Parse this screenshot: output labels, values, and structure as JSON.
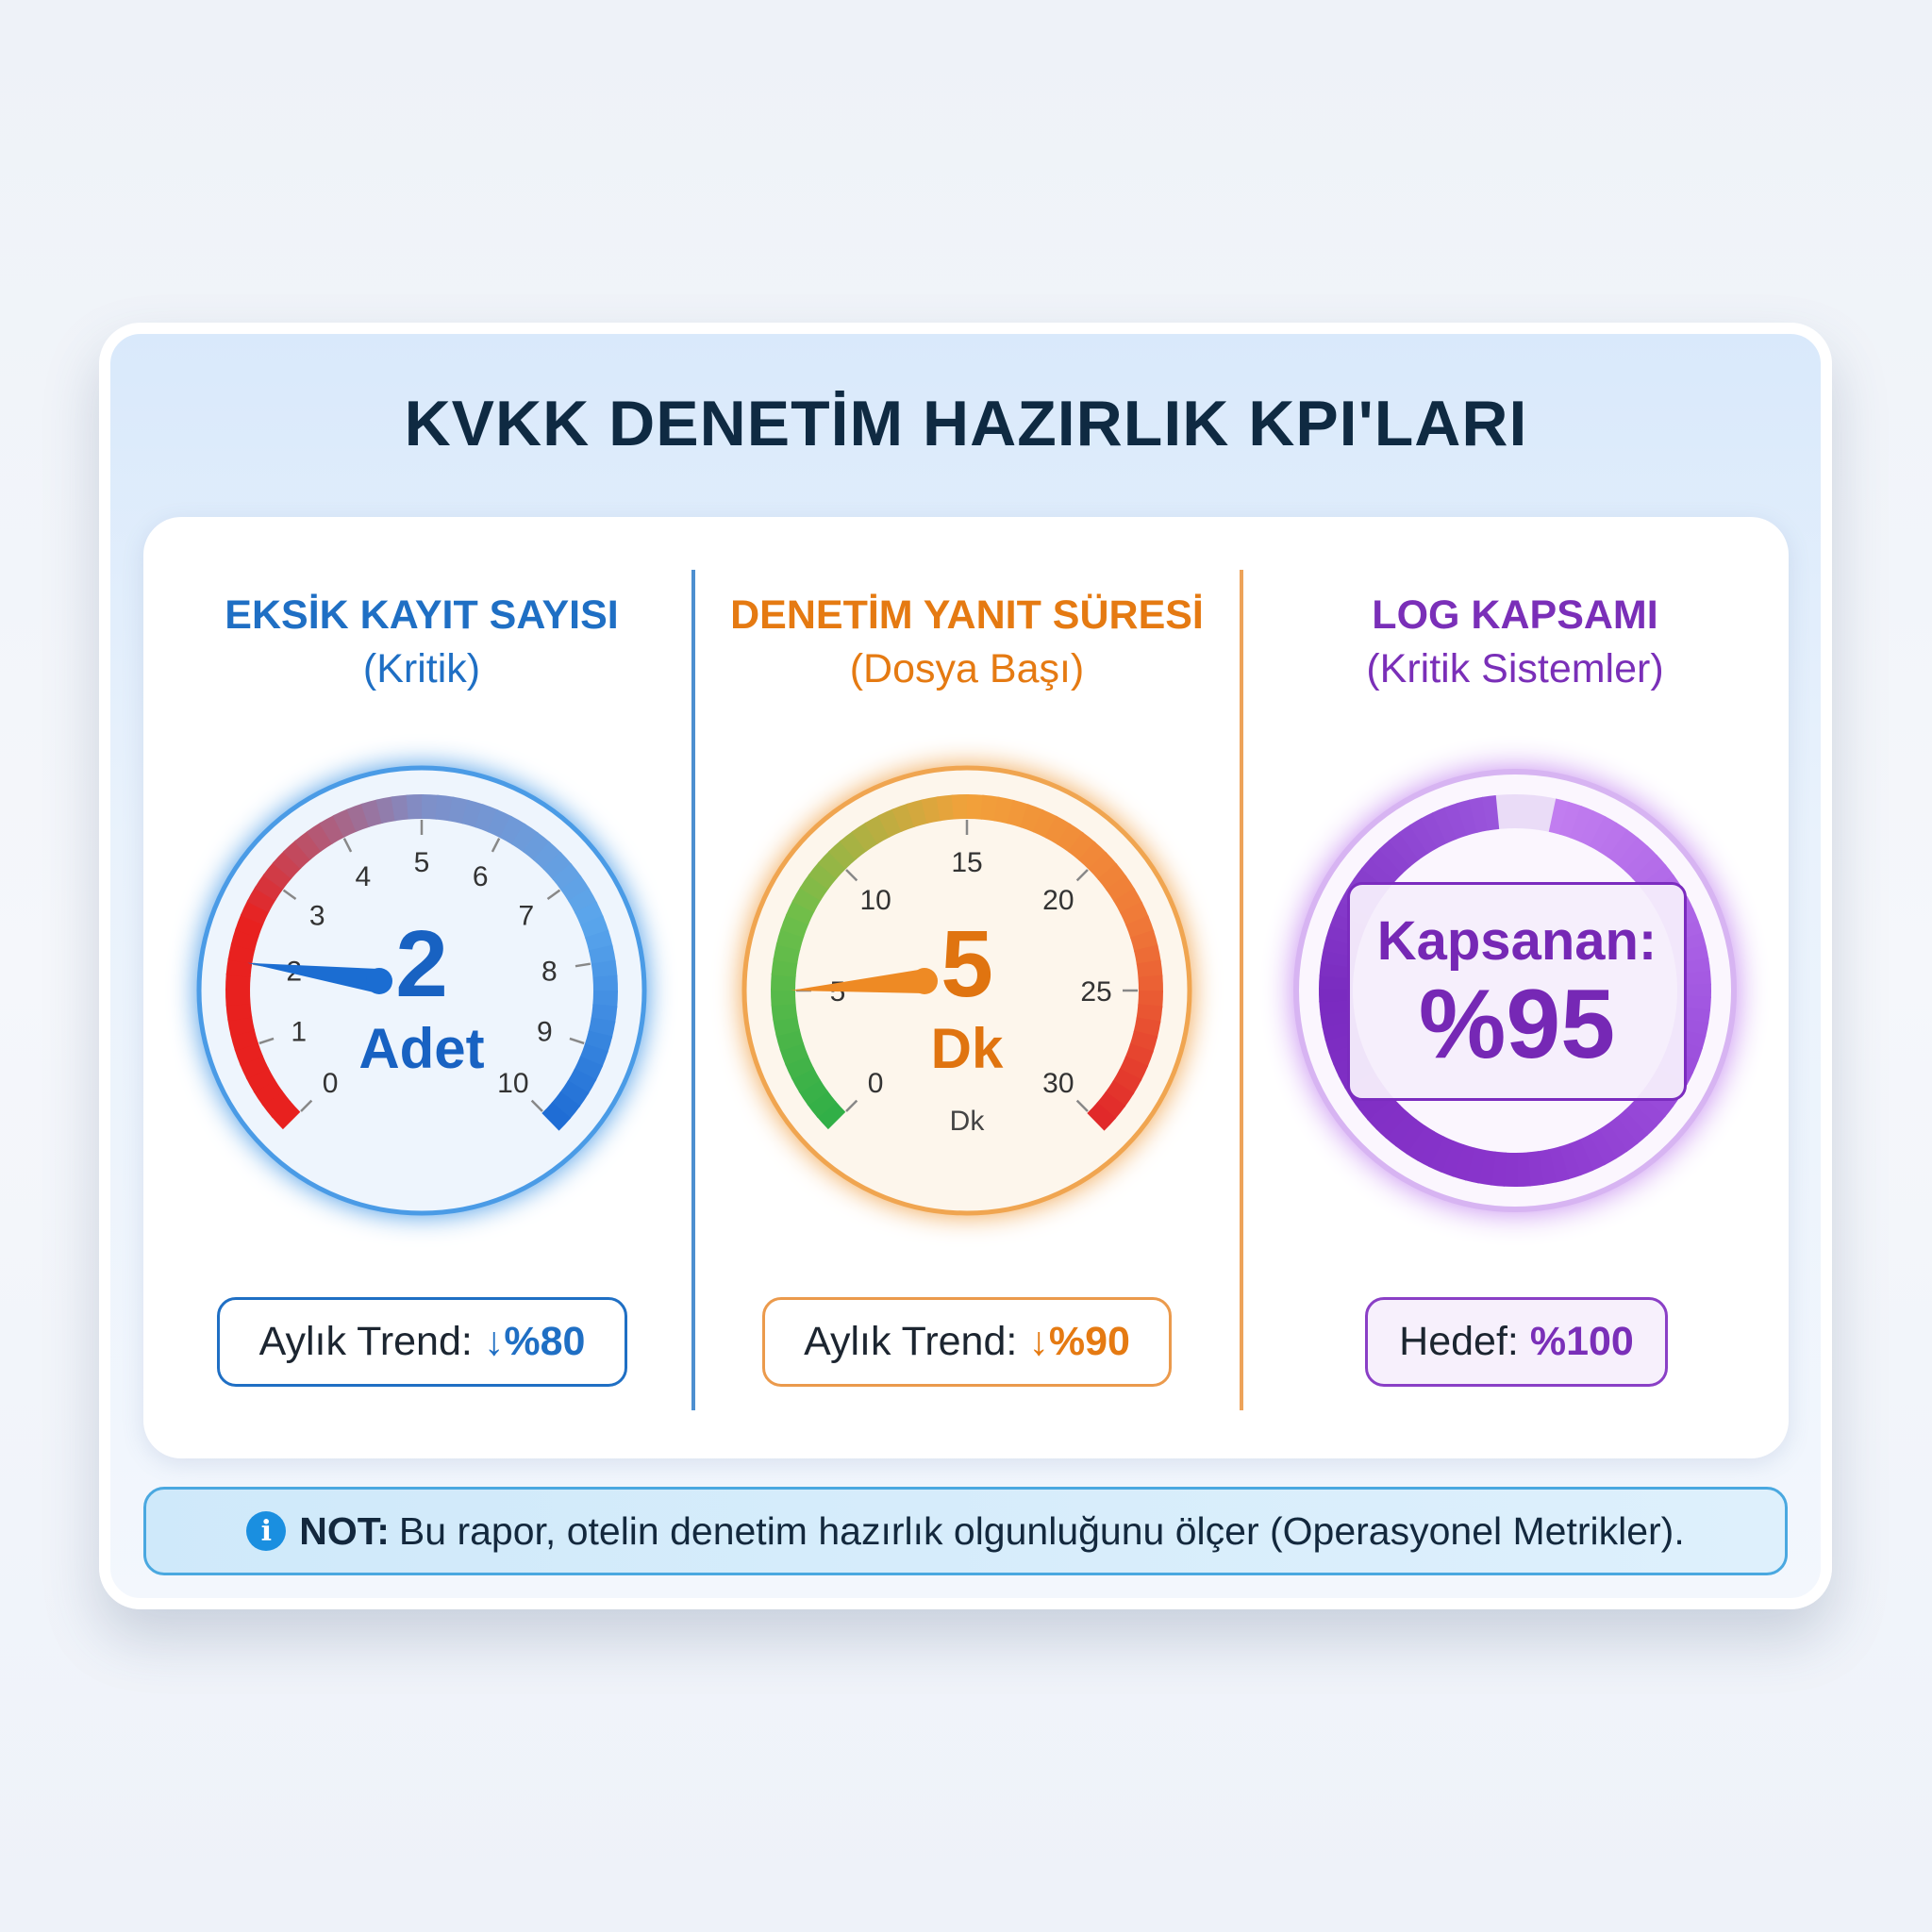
{
  "title": "KVKK DENETİM HAZIRLIK KPI'LARI",
  "columns": [
    {
      "heading": "EKSİK KAYIT SAYISI",
      "subheading": "(Kritik)",
      "color": "#1f6fc4",
      "gauge": {
        "min": 0,
        "max": 10,
        "ticks": [
          0,
          1,
          2,
          3,
          4,
          5,
          6,
          7,
          8,
          9,
          10
        ],
        "value": 2,
        "value_label": "2",
        "unit": "Adet",
        "arc_colors": [
          "#e8211f",
          "#e8211f",
          "#7f8fc8",
          "#5aa6ec",
          "#1d6bd4"
        ]
      },
      "trend": {
        "label": "Aylık Trend:",
        "value": "↓%80"
      }
    },
    {
      "heading": "DENETİM YANIT SÜRESİ",
      "subheading": "(Dosya Başı)",
      "color": "#e57a12",
      "gauge": {
        "min": 0,
        "max": 30,
        "ticks": [
          0,
          5,
          10,
          15,
          20,
          25,
          30
        ],
        "value": 5,
        "value_label": "5",
        "unit": "Dk",
        "scale_unit": "Dk",
        "arc_colors": [
          "#2fae47",
          "#6dbf4a",
          "#f2a13a",
          "#f07a38",
          "#e0262a"
        ]
      },
      "trend": {
        "label": "Aylık Trend:",
        "value": "↓%90"
      }
    },
    {
      "heading": "LOG KAPSAMI",
      "subheading": "(Kritik Sistemler)",
      "color": "#7a2fb8",
      "coverage": {
        "label": "Kapsanan:",
        "value_label": "%95",
        "percent": 95
      },
      "trend": {
        "label": "Hedef:",
        "value": "%100"
      }
    }
  ],
  "note": {
    "label": "NOT:",
    "text": "Bu rapor, otelin denetim hazırlık olgunluğunu ölçer (Operasyonel Metrikler)."
  },
  "colors": {
    "blue": "#1f6fc4",
    "orange": "#e57a12",
    "purple": "#7a2fb8",
    "info": "#1a8fe0"
  }
}
